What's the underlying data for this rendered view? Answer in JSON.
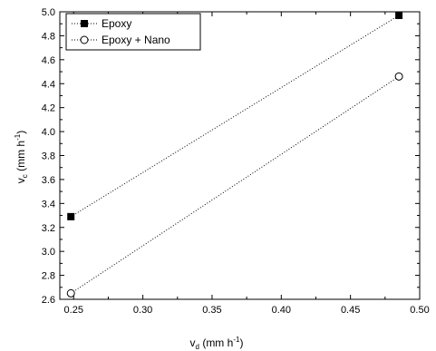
{
  "chart_data": {
    "type": "scatter",
    "xlabel": {
      "main": "v",
      "sub": "d",
      "unit_prefix": " (mm h",
      "sup": "-1",
      "unit_suffix": ")"
    },
    "ylabel": {
      "main": "v",
      "sub": "c",
      "unit_prefix": " (mm h",
      "sup": "-1",
      "unit_suffix": ")"
    },
    "xlim": [
      0.24,
      0.5
    ],
    "ylim": [
      2.6,
      5.0
    ],
    "xticks": [
      0.25,
      0.3,
      0.35,
      0.4,
      0.45,
      0.5
    ],
    "xtick_labels": [
      "0.25",
      "0.30",
      "0.35",
      "0.40",
      "0.45",
      "0.50"
    ],
    "yticks": [
      2.6,
      2.8,
      3.0,
      3.2,
      3.4,
      3.6,
      3.8,
      4.0,
      4.2,
      4.4,
      4.6,
      4.8,
      5.0
    ],
    "ytick_labels": [
      "2.6",
      "2.8",
      "3.0",
      "3.2",
      "3.4",
      "3.6",
      "3.8",
      "4.0",
      "4.2",
      "4.4",
      "4.6",
      "4.8",
      "5.0"
    ],
    "grid": false,
    "legend_position": "top-left",
    "series": [
      {
        "name": "Epoxy",
        "marker": "filled-square",
        "line": "dotted",
        "color": "#000000",
        "x": [
          0.248,
          0.485
        ],
        "y": [
          3.29,
          4.97
        ]
      },
      {
        "name": "Epoxy + Nano",
        "marker": "open-circle",
        "line": "dotted",
        "color": "#000000",
        "x": [
          0.248,
          0.485
        ],
        "y": [
          2.65,
          4.46
        ]
      }
    ]
  }
}
